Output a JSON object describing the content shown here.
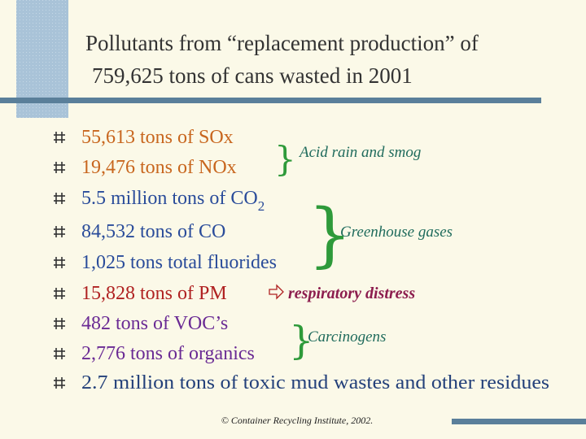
{
  "title": {
    "lines": [
      "Pollutants from “replacement production” of",
      "759,625 tons of cans wasted in 2001"
    ]
  },
  "bullets": [
    {
      "text": "55,613 tons of SOx"
    },
    {
      "text": "19,476 tons of NOx"
    },
    {
      "text": "5.5 million tons of CO",
      "subscript": "2"
    },
    {
      "text": "84,532 tons of CO"
    },
    {
      "text": "1,025 tons total fluorides"
    },
    {
      "text": "15,828 tons of PM",
      "note": "respiratory distress"
    },
    {
      "text": "482 tons of VOC’s"
    },
    {
      "text": "2,776 tons of organics"
    },
    {
      "text": "2.7 million tons of toxic mud wastes and other residues"
    }
  ],
  "groups": [
    {
      "label": "Acid rain and smog"
    },
    {
      "label": "Greenhouse gases"
    },
    {
      "label": "Carcinogens"
    }
  ],
  "footer": "© Container Recycling Institute, 2002."
}
